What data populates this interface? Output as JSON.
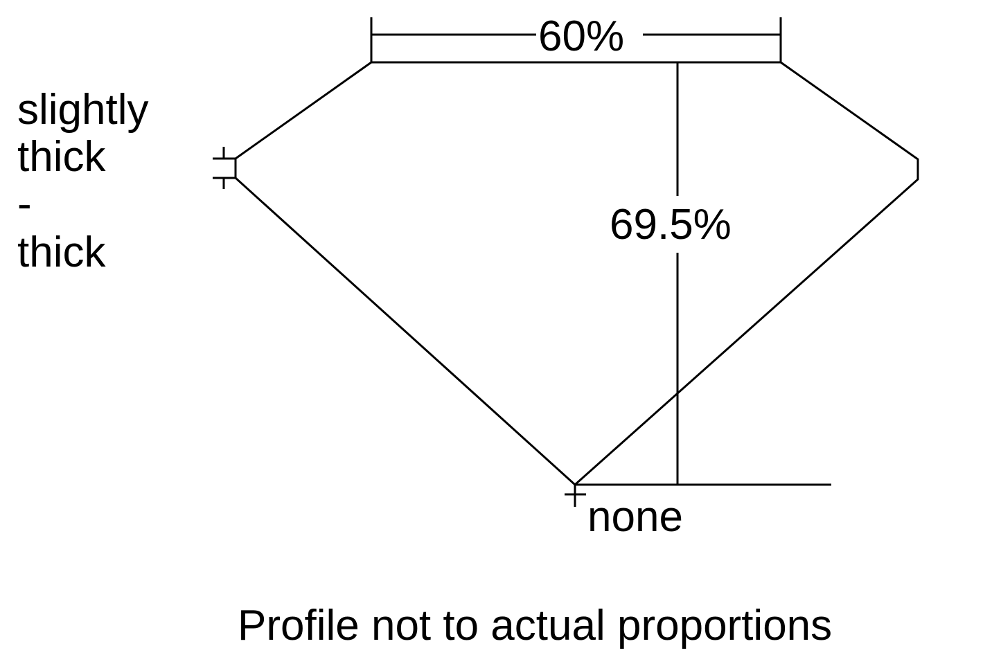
{
  "diagram": {
    "table_label": "60%",
    "depth_label": "69.5%",
    "girdle_label": [
      "slightly",
      "thick",
      "-",
      "thick"
    ],
    "culet_label": "none",
    "note": "Profile not to actual proportions",
    "line_color": "#000000"
  }
}
